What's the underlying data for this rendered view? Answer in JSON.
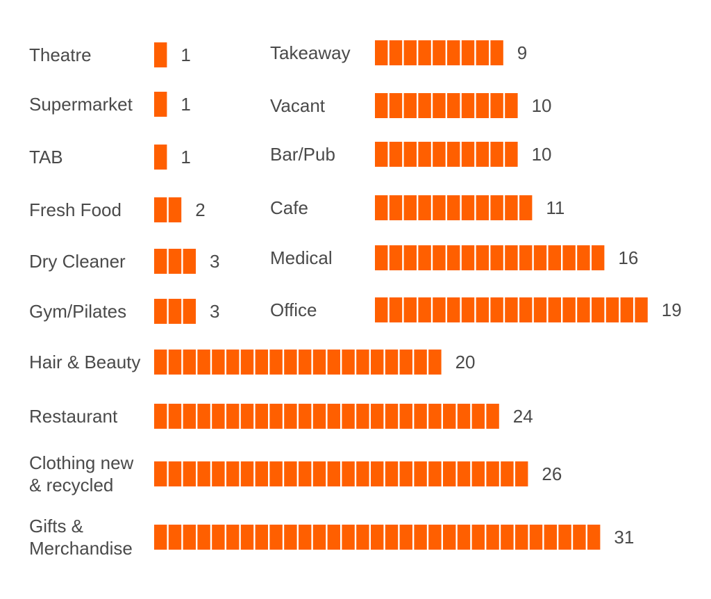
{
  "chart_data": {
    "type": "bar",
    "orientation": "horizontal",
    "unit_style": "stacked-unit-blocks",
    "bar_color": "#ff5f00",
    "text_color": "#4a4a4a",
    "groups": [
      {
        "name": "left-column",
        "items": [
          {
            "category": [
              "Theatre"
            ],
            "value": 1
          },
          {
            "category": [
              "Supermarket"
            ],
            "value": 1
          },
          {
            "category": [
              "TAB"
            ],
            "value": 1
          },
          {
            "category": [
              "Fresh Food"
            ],
            "value": 2
          },
          {
            "category": [
              "Dry Cleaner"
            ],
            "value": 3
          },
          {
            "category": [
              "Gym/Pilates"
            ],
            "value": 3
          }
        ]
      },
      {
        "name": "right-column",
        "items": [
          {
            "category": [
              "Takeaway"
            ],
            "value": 9
          },
          {
            "category": [
              "Vacant"
            ],
            "value": 10
          },
          {
            "category": [
              "Bar/Pub"
            ],
            "value": 10
          },
          {
            "category": [
              "Cafe"
            ],
            "value": 11
          },
          {
            "category": [
              "Medical"
            ],
            "value": 16
          },
          {
            "category": [
              "Office"
            ],
            "value": 19
          }
        ]
      },
      {
        "name": "bottom-full-width",
        "items": [
          {
            "category": [
              "Hair & Beauty"
            ],
            "value": 20
          },
          {
            "category": [
              "Restaurant"
            ],
            "value": 24
          },
          {
            "category": [
              "Clothing new",
              "& recycled"
            ],
            "value": 26
          },
          {
            "category": [
              "Gifts &",
              "Merchandise"
            ],
            "value": 31
          }
        ]
      }
    ]
  }
}
